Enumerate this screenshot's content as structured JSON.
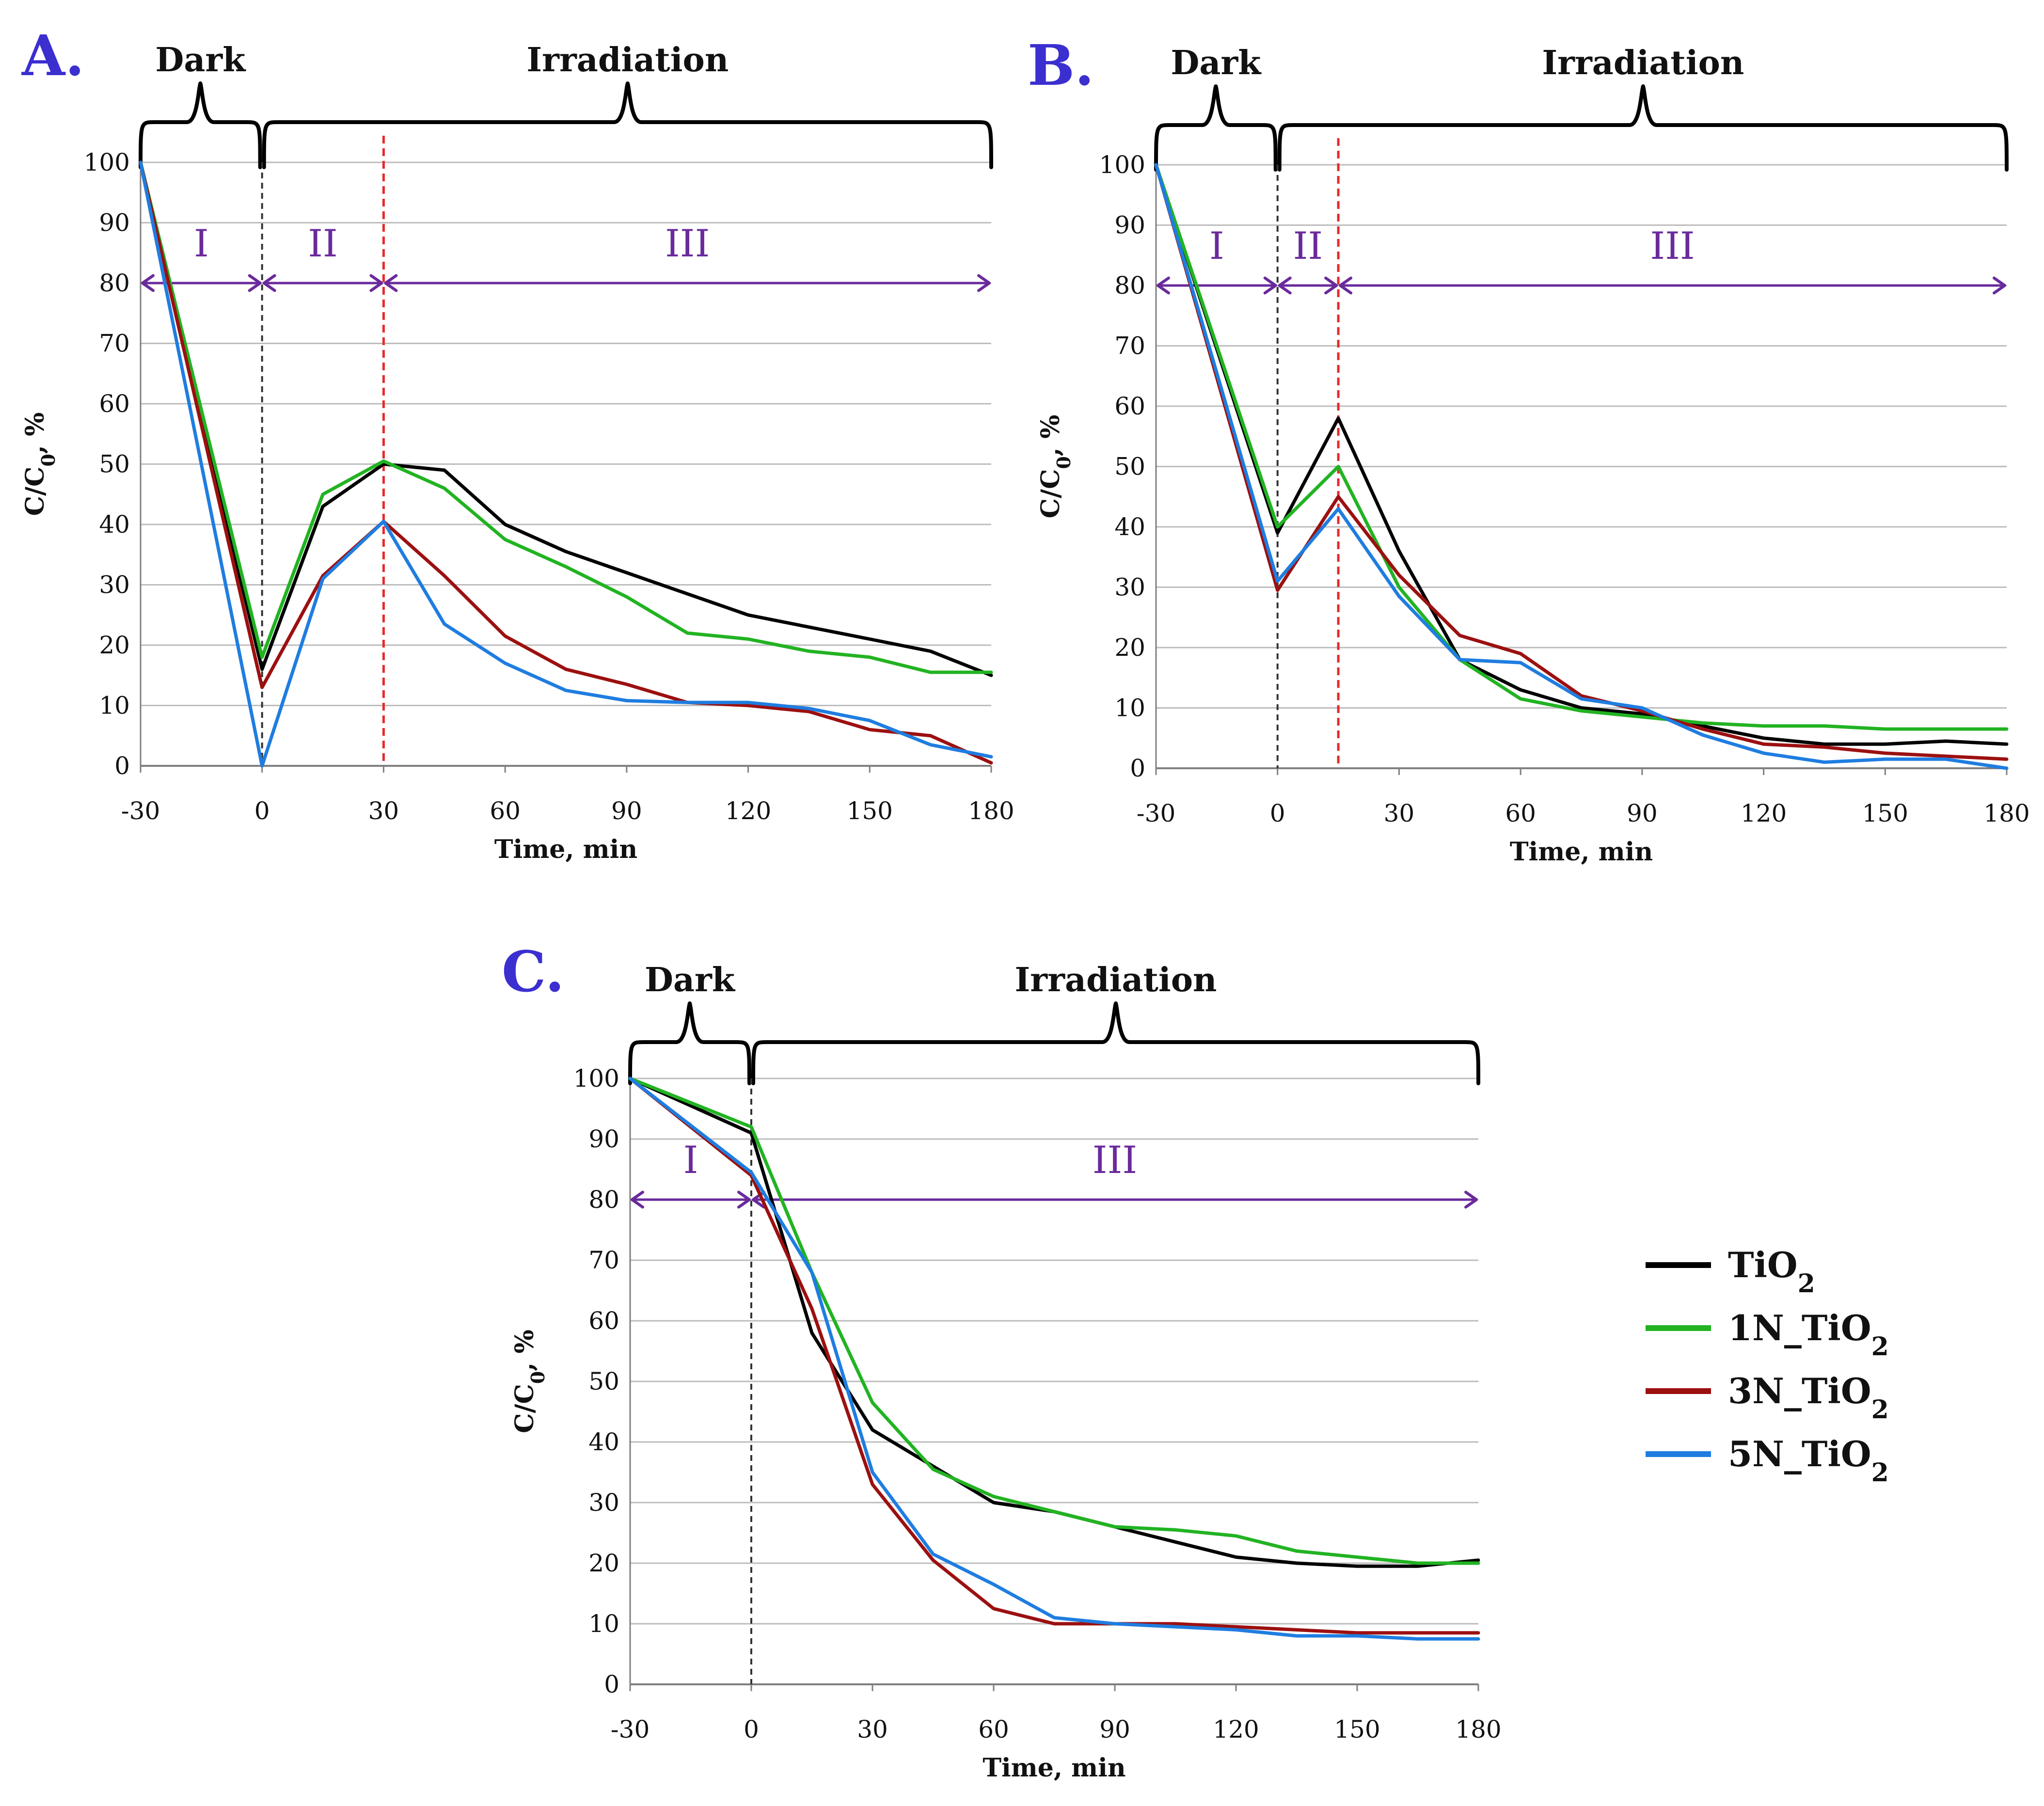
{
  "colors": {
    "grid": "#bdbdbd",
    "axis": "#7f7f7f",
    "arrow": "#6a2a9c",
    "dark_divider": "#333333",
    "red_divider": "#e8292c",
    "brace": "#000000"
  },
  "legend": [
    {
      "name": "TiO",
      "sub": "2",
      "color": "#000000"
    },
    {
      "name": "1N_TiO",
      "sub": "2",
      "color": "#22b322"
    },
    {
      "name": "3N_TiO",
      "sub": "2",
      "color": "#9c1010"
    },
    {
      "name": "5N_TiO",
      "sub": "2",
      "color": "#1f7de0"
    }
  ],
  "chart_data": [
    {
      "panel": "A.",
      "type": "line",
      "xlabel": "Time, min",
      "ylabel": "C/C",
      "ylabel_sub": "0",
      "ylabel_suffix": ", %",
      "xlim": [
        -30,
        180
      ],
      "ylim": [
        0,
        100
      ],
      "xticks": [
        -30,
        0,
        30,
        60,
        90,
        120,
        150,
        180
      ],
      "yticks": [
        0,
        10,
        20,
        30,
        40,
        50,
        60,
        70,
        80,
        90,
        100
      ],
      "phases": [
        {
          "label": "Dark",
          "from": -30,
          "to": 0
        },
        {
          "label": "Irradiation",
          "from": 0,
          "to": 180
        }
      ],
      "regions": [
        {
          "label": "I",
          "from": -30,
          "to": 0
        },
        {
          "label": "II",
          "from": 0,
          "to": 30
        },
        {
          "label": "III",
          "from": 30,
          "to": 180
        }
      ],
      "region_arrow_y": 80,
      "dark_divider_x": 0,
      "red_divider_x": 30,
      "series": [
        {
          "name": "TiO2",
          "x": [
            -30,
            0,
            15,
            30,
            45,
            60,
            75,
            90,
            105,
            120,
            135,
            150,
            165,
            180
          ],
          "values": [
            100,
            16,
            43,
            50,
            49,
            40,
            35.5,
            32,
            28.5,
            25,
            23,
            21,
            19,
            15
          ]
        },
        {
          "name": "1N_TiO2",
          "x": [
            -30,
            0,
            15,
            30,
            45,
            60,
            75,
            90,
            105,
            120,
            135,
            150,
            165,
            180
          ],
          "values": [
            100,
            18,
            45,
            50.5,
            46,
            37.5,
            33,
            28,
            22,
            21,
            19,
            18,
            15.5,
            15.5
          ]
        },
        {
          "name": "3N_TiO2",
          "x": [
            -30,
            0,
            15,
            30,
            45,
            60,
            75,
            90,
            105,
            120,
            135,
            150,
            165,
            180
          ],
          "values": [
            100,
            13,
            31.5,
            40.5,
            31.5,
            21.5,
            16,
            13.5,
            10.5,
            10,
            9,
            6,
            5,
            0.5
          ]
        },
        {
          "name": "5N_TiO2",
          "x": [
            -30,
            0,
            15,
            30,
            45,
            60,
            75,
            90,
            105,
            120,
            135,
            150,
            165,
            180
          ],
          "values": [
            100,
            0,
            31,
            40.5,
            23.5,
            17,
            12.5,
            10.8,
            10.5,
            10.5,
            9.5,
            7.5,
            3.5,
            1.5
          ]
        }
      ]
    },
    {
      "panel": "B.",
      "type": "line",
      "xlabel": "Time, min",
      "ylabel": "C/C",
      "ylabel_sub": "0",
      "ylabel_suffix": ", %",
      "xlim": [
        -30,
        180
      ],
      "ylim": [
        0,
        100
      ],
      "xticks": [
        -30,
        0,
        30,
        60,
        90,
        120,
        150,
        180
      ],
      "yticks": [
        0,
        10,
        20,
        30,
        40,
        50,
        60,
        70,
        80,
        90,
        100
      ],
      "phases": [
        {
          "label": "Dark",
          "from": -30,
          "to": 0
        },
        {
          "label": "Irradiation",
          "from": 0,
          "to": 180
        }
      ],
      "regions": [
        {
          "label": "I",
          "from": -30,
          "to": 0
        },
        {
          "label": "II",
          "from": 0,
          "to": 15
        },
        {
          "label": "III",
          "from": 15,
          "to": 180
        }
      ],
      "region_arrow_y": 80,
      "dark_divider_x": 0,
      "red_divider_x": 15,
      "series": [
        {
          "name": "TiO2",
          "x": [
            -30,
            0,
            15,
            30,
            45,
            60,
            75,
            90,
            105,
            120,
            135,
            150,
            165,
            180
          ],
          "values": [
            100,
            39,
            58,
            36,
            18,
            13,
            10,
            9,
            7,
            5,
            4,
            4,
            4.5,
            4
          ]
        },
        {
          "name": "1N_TiO2",
          "x": [
            -30,
            0,
            15,
            30,
            45,
            60,
            75,
            90,
            105,
            120,
            135,
            150,
            165,
            180
          ],
          "values": [
            100,
            40,
            50,
            30,
            18,
            11.5,
            9.5,
            8.5,
            7.5,
            7,
            7,
            6.5,
            6.5,
            6.5
          ]
        },
        {
          "name": "3N_TiO2",
          "x": [
            -30,
            0,
            15,
            30,
            45,
            60,
            75,
            90,
            105,
            120,
            135,
            150,
            165,
            180
          ],
          "values": [
            100,
            29.5,
            45,
            32,
            22,
            19,
            12,
            9.5,
            6.5,
            4,
            3.5,
            2.5,
            2,
            1.5
          ]
        },
        {
          "name": "5N_TiO2",
          "x": [
            -30,
            0,
            15,
            30,
            45,
            60,
            75,
            90,
            105,
            120,
            135,
            150,
            165,
            180
          ],
          "values": [
            100,
            31,
            43,
            28.5,
            18,
            17.5,
            11.5,
            10,
            5.5,
            2.5,
            1,
            1.5,
            1.5,
            0
          ]
        }
      ]
    },
    {
      "panel": "C.",
      "type": "line",
      "xlabel": "Time, min",
      "ylabel": "C/C",
      "ylabel_sub": "0",
      "ylabel_suffix": ", %",
      "xlim": [
        -30,
        180
      ],
      "ylim": [
        0,
        100
      ],
      "xticks": [
        -30,
        0,
        30,
        60,
        90,
        120,
        150,
        180
      ],
      "yticks": [
        0,
        10,
        20,
        30,
        40,
        50,
        60,
        70,
        80,
        90,
        100
      ],
      "phases": [
        {
          "label": "Dark",
          "from": -30,
          "to": 0
        },
        {
          "label": "Irradiation",
          "from": 0,
          "to": 180
        }
      ],
      "regions": [
        {
          "label": "I",
          "from": -30,
          "to": 0
        },
        {
          "label": "III",
          "from": 0,
          "to": 180
        }
      ],
      "region_arrow_y": 80,
      "dark_divider_x": 0,
      "red_divider_x": null,
      "series": [
        {
          "name": "TiO2",
          "x": [
            -30,
            0,
            15,
            30,
            45,
            60,
            75,
            90,
            105,
            120,
            135,
            150,
            165,
            180
          ],
          "values": [
            100,
            91,
            58,
            42,
            36,
            30,
            28.5,
            26,
            23.5,
            21,
            20,
            19.5,
            19.5,
            20.5
          ]
        },
        {
          "name": "1N_TiO2",
          "x": [
            -30,
            0,
            15,
            30,
            45,
            60,
            75,
            90,
            105,
            120,
            135,
            150,
            165,
            180
          ],
          "values": [
            100,
            92,
            68,
            46.5,
            35.5,
            31,
            28.5,
            26,
            25.5,
            24.5,
            22,
            21,
            20,
            20
          ]
        },
        {
          "name": "3N_TiO2",
          "x": [
            -30,
            0,
            15,
            30,
            45,
            60,
            75,
            90,
            105,
            120,
            135,
            150,
            165,
            180
          ],
          "values": [
            100,
            84,
            62,
            33,
            20.5,
            12.5,
            10,
            10,
            10,
            9.5,
            9,
            8.5,
            8.5,
            8.5
          ]
        },
        {
          "name": "5N_TiO2",
          "x": [
            -30,
            0,
            15,
            30,
            45,
            60,
            75,
            90,
            105,
            120,
            135,
            150,
            165,
            180
          ],
          "values": [
            100,
            84.5,
            68,
            35,
            21.5,
            16.5,
            11,
            10,
            9.5,
            9,
            8,
            8,
            7.5,
            7.5
          ]
        }
      ]
    }
  ]
}
